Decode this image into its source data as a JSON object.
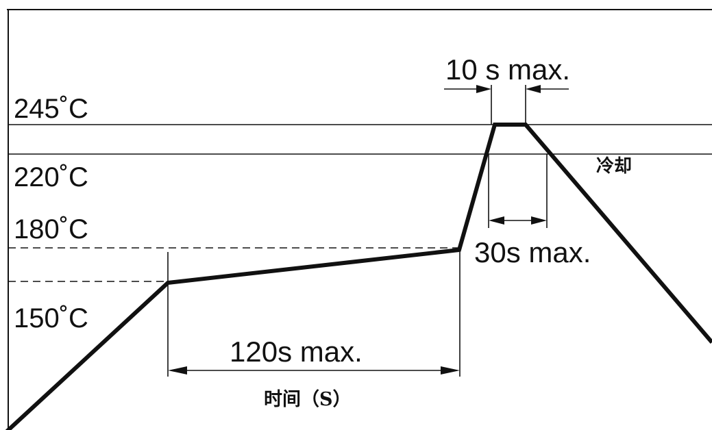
{
  "temperature_labels": {
    "t245": "245˚C",
    "t220": "220˚C",
    "t180": "180˚C",
    "t150": "150˚C"
  },
  "annotations": {
    "peak": "10 s max.",
    "above220": "30s max.",
    "preheat": "120s max.",
    "cooling": "冷却"
  },
  "axis": {
    "time_label": "时间（S）"
  },
  "colors": {
    "line": "#111111",
    "background": "#ffffff"
  }
}
